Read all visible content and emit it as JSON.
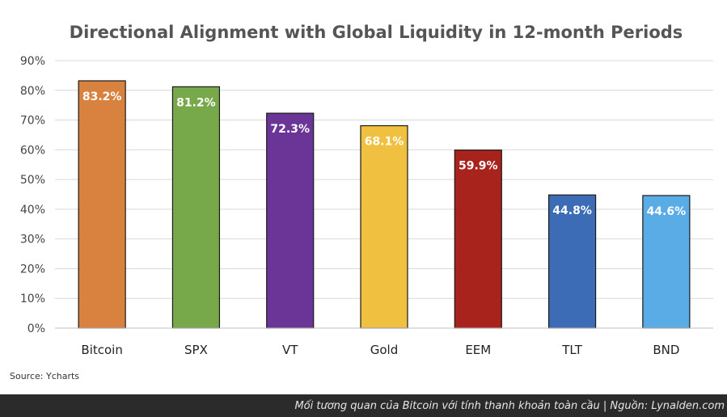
{
  "chart_data": {
    "type": "bar",
    "title": "Directional Alignment with Global Liquidity in 12-month Periods",
    "xlabel": "",
    "ylabel": "",
    "categories": [
      "Bitcoin",
      "SPX",
      "VT",
      "Gold",
      "EEM",
      "TLT",
      "BND"
    ],
    "values": [
      83.2,
      81.2,
      72.3,
      68.1,
      59.9,
      44.8,
      44.6
    ],
    "data_labels": [
      "83.2%",
      "81.2%",
      "72.3%",
      "68.1%",
      "59.9%",
      "44.8%",
      "44.6%"
    ],
    "colors": [
      "#d9823f",
      "#77a84a",
      "#6a3597",
      "#f0c040",
      "#a8231c",
      "#3b6cb5",
      "#5aace6"
    ],
    "ylim": [
      0,
      90
    ],
    "yticks": [
      0,
      10,
      20,
      30,
      40,
      50,
      60,
      70,
      80,
      90
    ],
    "ytick_labels": [
      "0%",
      "10%",
      "20%",
      "30%",
      "40%",
      "50%",
      "60%",
      "70%",
      "80%",
      "90%"
    ],
    "grid": true,
    "legend": "none"
  },
  "source_note": "Source: Ycharts",
  "caption": "Mối tương quan của Bitcoin với tính thanh khoản toàn cầu | Nguồn: Lynalden.com"
}
